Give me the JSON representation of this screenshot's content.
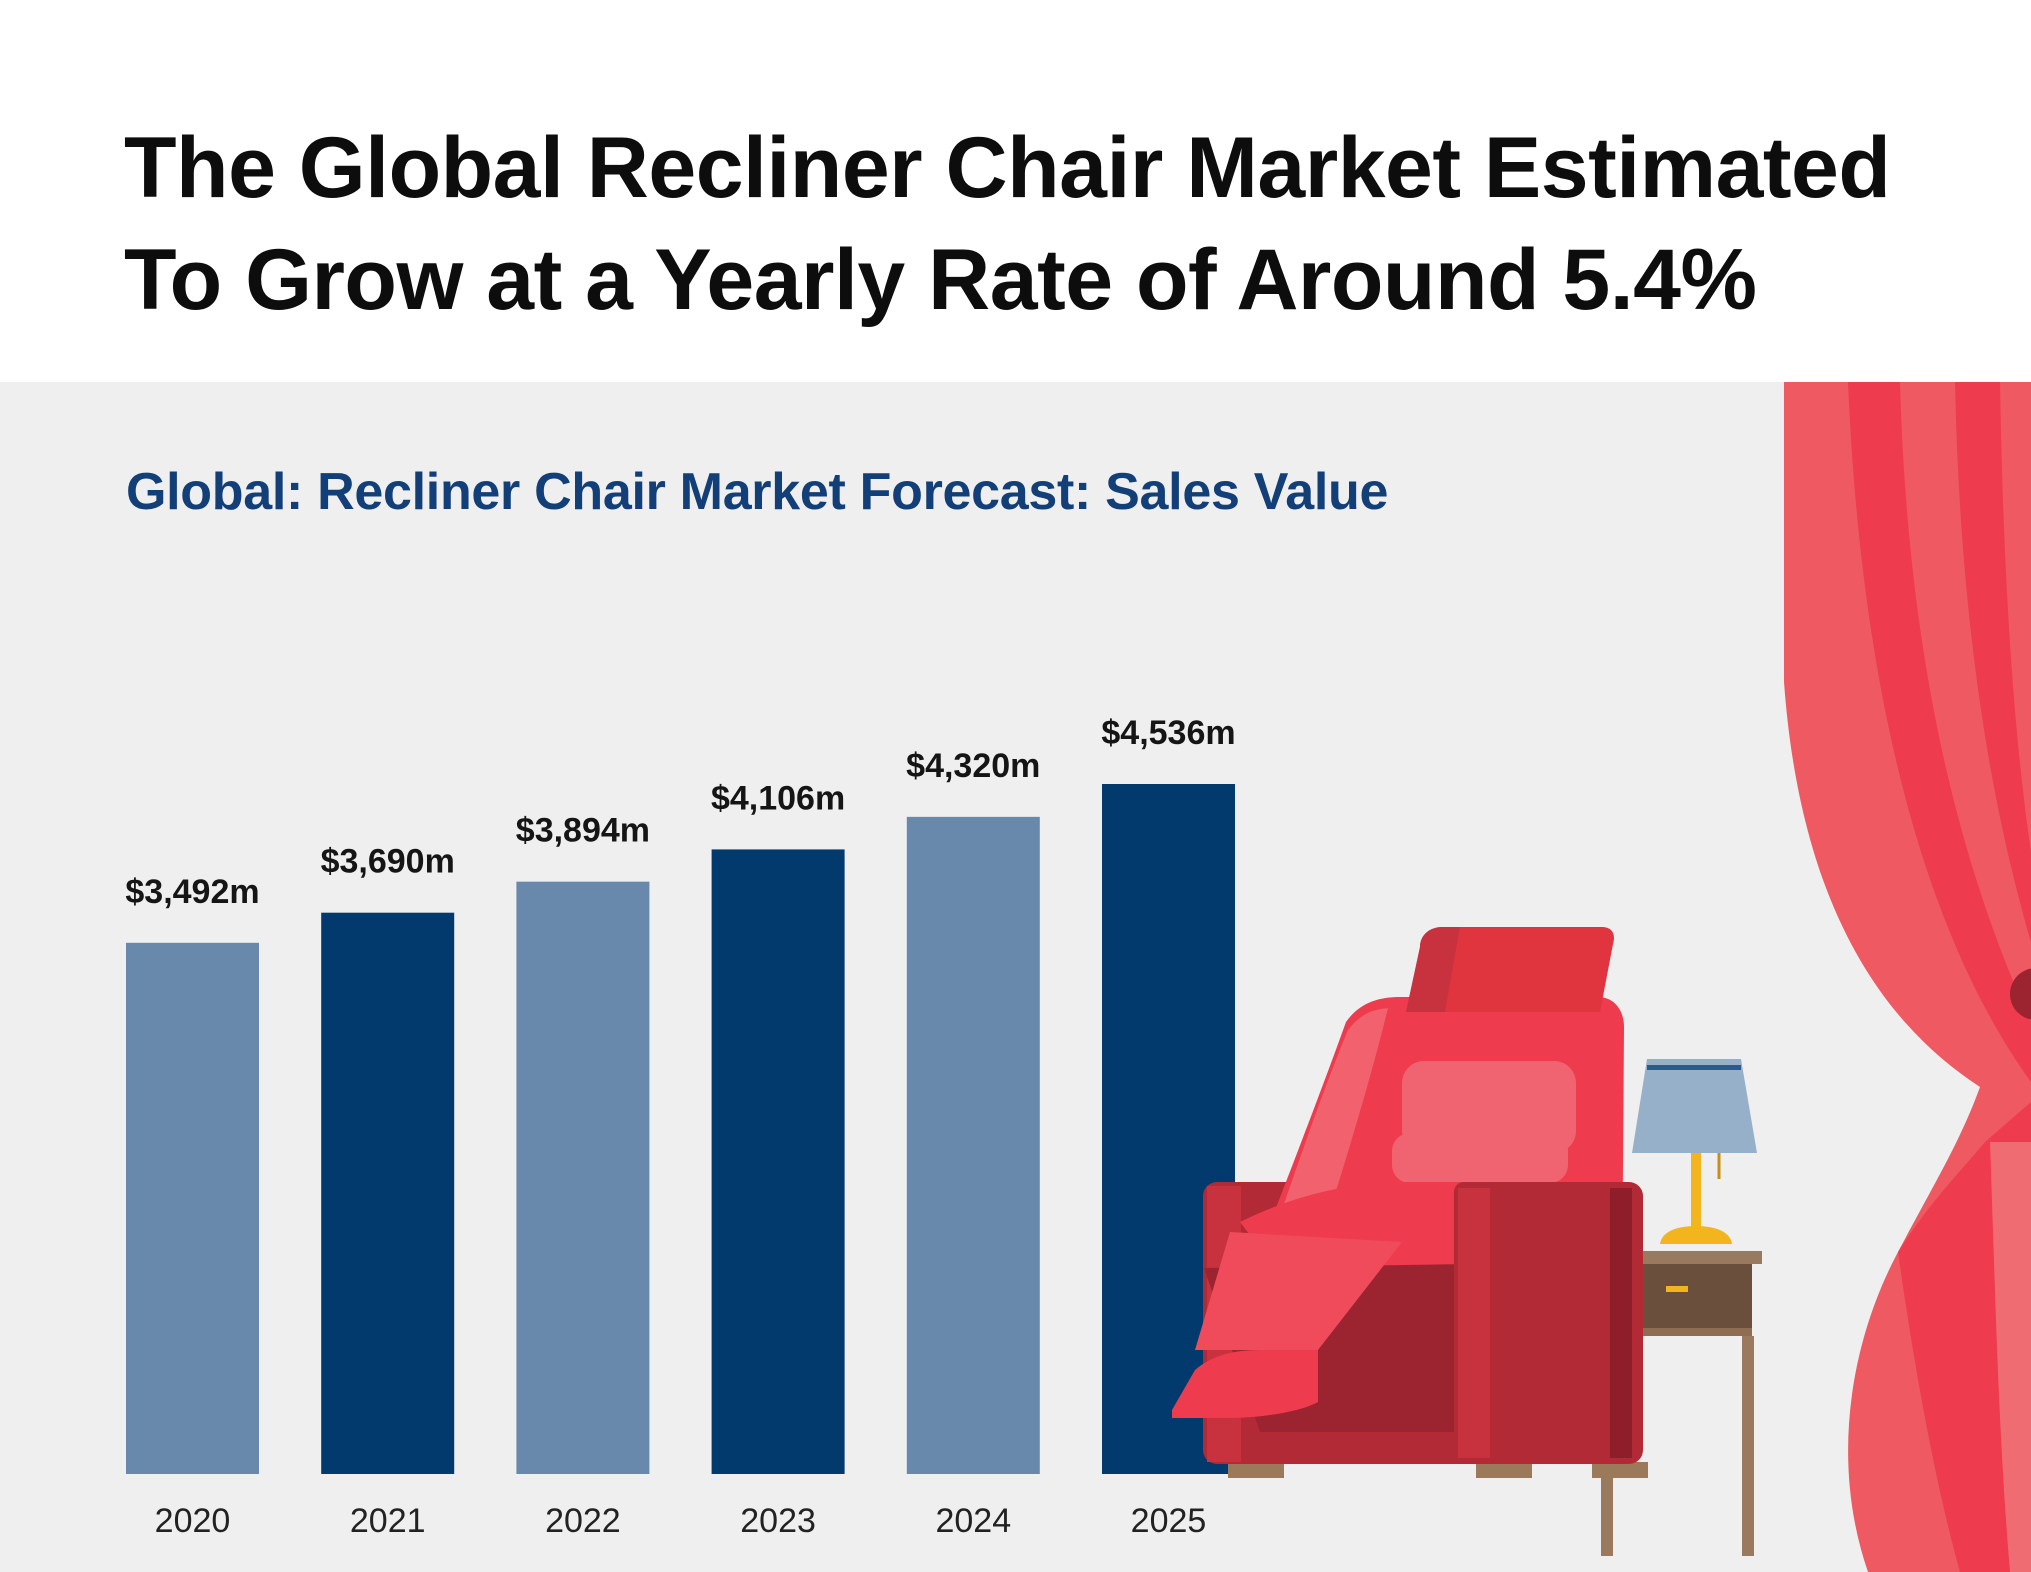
{
  "header": {
    "title_line1": "The Global Recliner Chair Market Estimated",
    "title_line2": "To Grow at a Yearly Rate of Around 5.4%"
  },
  "chart_data": {
    "type": "bar",
    "title": "Global: Recliner Chair Market Forecast: Sales Value",
    "categories": [
      "2020",
      "2021",
      "2022",
      "2023",
      "2024",
      "2025"
    ],
    "values": [
      3492,
      3690,
      3894,
      4106,
      4320,
      4536
    ],
    "value_labels": [
      "$3,492m",
      "$3,690m",
      "$3,894m",
      "$4,106m",
      "$4,320m",
      "$4,536m"
    ],
    "bar_colors": [
      "#6889ab",
      "#023a6e",
      "#6889ab",
      "#023a6e",
      "#6889ab",
      "#023a6e"
    ],
    "xlabel": "",
    "ylabel": "",
    "ylim": [
      0,
      4536
    ],
    "grid": false,
    "legend": "none"
  },
  "illustration": {
    "items": [
      "recliner-chair",
      "side-table-lamp",
      "stage-curtain"
    ],
    "colors": {
      "chair_red": "#ef3a4a",
      "chair_dark": "#b22a35",
      "lamp_shade": "#97b0ca",
      "lamp_base": "#f2b51d",
      "table_wood": "#a07d5f",
      "curtain": "#ee3b4d"
    }
  }
}
